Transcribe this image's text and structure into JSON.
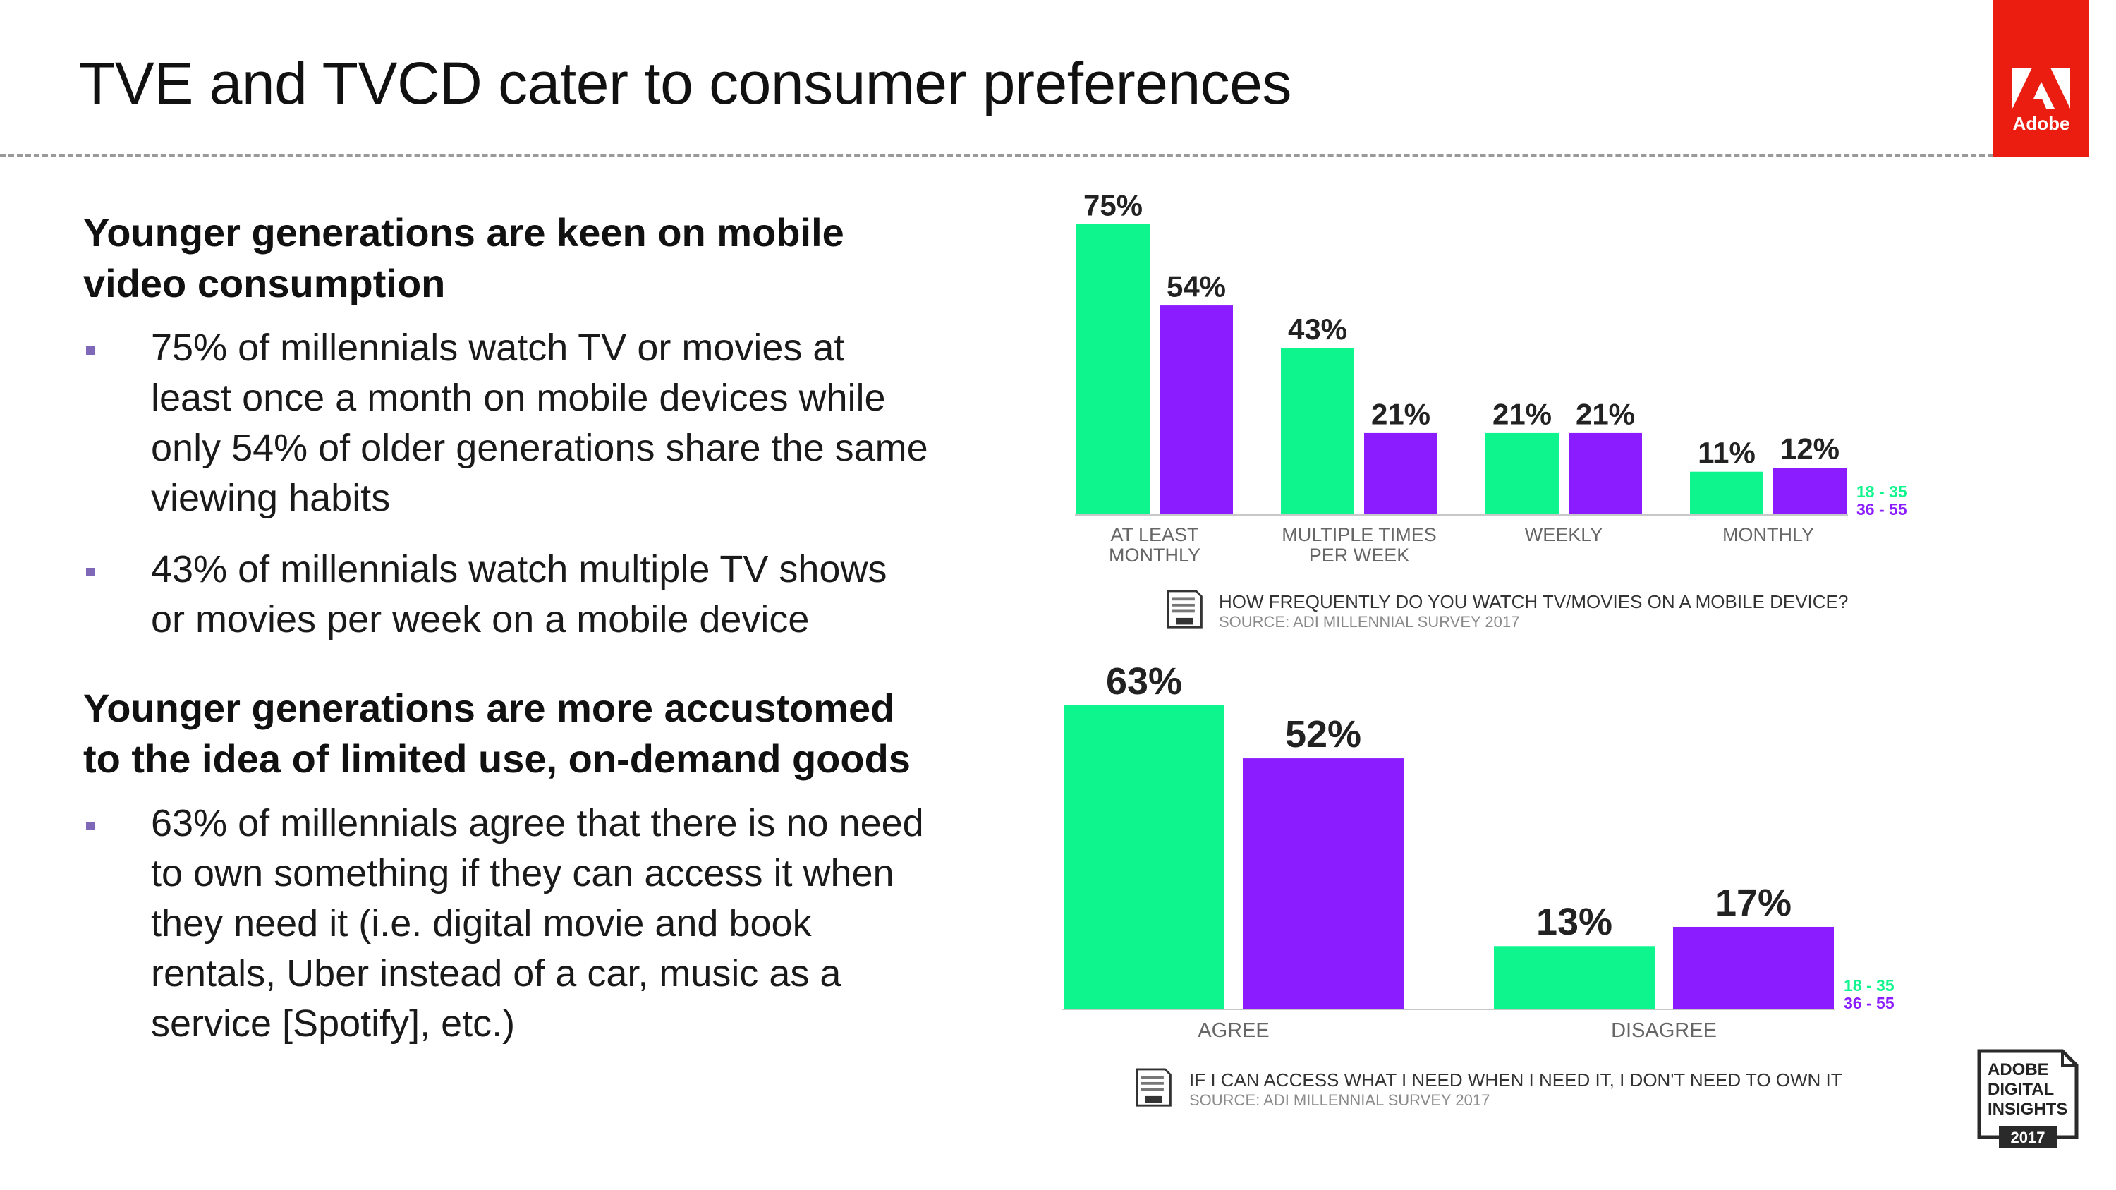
{
  "title": "TVE and TVCD cater to consumer preferences",
  "brand": {
    "logo_text": "Adobe",
    "logo_color": "#eb1c10",
    "badge_lines": [
      "ADOBE",
      "DIGITAL",
      "INSIGHTS",
      "2017"
    ]
  },
  "sections": [
    {
      "heading": "Younger generations are keen on mobile video consumption",
      "bullets": [
        "75% of millennials watch TV or movies at least once a month on mobile devices while only 54% of older generations share the same viewing habits",
        "43% of millennials watch multiple TV shows or movies per week on a mobile device"
      ]
    },
    {
      "heading": "Younger generations are more accustomed to the idea of limited use, on-demand goods",
      "bullets": [
        "63% of millennials agree that there is no need to own something if they can access it when they need it (i.e. digital movie and book rentals, Uber instead of a car, music as a service [Spotify], etc.)"
      ]
    }
  ],
  "colors": {
    "series_a": "#0ef58e",
    "series_b": "#8a1cff",
    "axis": "#c8c8c8",
    "label": "#666666"
  },
  "chart_data": [
    {
      "type": "bar",
      "title": "HOW FREQUENTLY DO YOU WATCH TV/MOVIES ON A MOBILE DEVICE?",
      "source": "SOURCE: ADI MILLENNIAL SURVEY 2017",
      "categories": [
        [
          "AT LEAST",
          "MONTHLY"
        ],
        [
          "MULTIPLE TIMES",
          "PER WEEK"
        ],
        [
          "WEEKLY"
        ],
        [
          "MONTHLY"
        ]
      ],
      "series": [
        {
          "name": "18 - 35",
          "values": [
            75,
            43,
            21,
            11
          ]
        },
        {
          "name": "36 - 55",
          "values": [
            54,
            21,
            21,
            12
          ]
        }
      ],
      "value_suffix": "%",
      "ylim": [
        0,
        75
      ],
      "legend": "right"
    },
    {
      "type": "bar",
      "title": "IF I CAN ACCESS WHAT I NEED WHEN I NEED IT, I DON'T NEED TO OWN IT",
      "source": "SOURCE: ADI MILLENNIAL SURVEY 2017",
      "categories": [
        [
          "AGREE"
        ],
        [
          "DISAGREE"
        ]
      ],
      "series": [
        {
          "name": "18 - 35",
          "values": [
            63,
            13
          ]
        },
        {
          "name": "36 - 55",
          "values": [
            52,
            17
          ]
        }
      ],
      "value_suffix": "%",
      "ylim": [
        0,
        63
      ],
      "legend": "right"
    }
  ]
}
